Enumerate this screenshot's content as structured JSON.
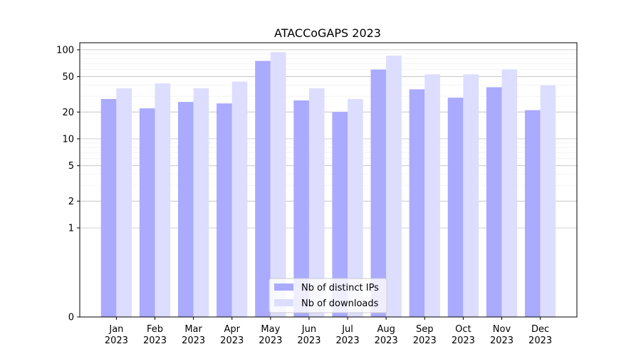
{
  "chart_data": {
    "type": "bar",
    "title": "ATACCoGAPS 2023",
    "xlabel": "",
    "ylabel": "",
    "yscale": "symlog",
    "ylim": [
      0,
      120
    ],
    "yticks": [
      0,
      1,
      2,
      5,
      10,
      20,
      50,
      100
    ],
    "ytick_labels": [
      "0",
      "1",
      "2",
      "5",
      "10",
      "20",
      "50",
      "100"
    ],
    "grid": "horizontal",
    "legend_position": "bottom-center",
    "categories": [
      [
        "Jan",
        "2023"
      ],
      [
        "Feb",
        "2023"
      ],
      [
        "Mar",
        "2023"
      ],
      [
        "Apr",
        "2023"
      ],
      [
        "May",
        "2023"
      ],
      [
        "Jun",
        "2023"
      ],
      [
        "Jul",
        "2023"
      ],
      [
        "Aug",
        "2023"
      ],
      [
        "Sep",
        "2023"
      ],
      [
        "Oct",
        "2023"
      ],
      [
        "Nov",
        "2023"
      ],
      [
        "Dec",
        "2023"
      ]
    ],
    "series": [
      {
        "name": "Nb of distinct IPs",
        "color": "#aaaaff",
        "values": [
          28,
          22,
          26,
          25,
          75,
          27,
          20,
          60,
          36,
          29,
          38,
          21
        ]
      },
      {
        "name": "Nb of downloads",
        "color": "#ddddff",
        "values": [
          37,
          42,
          37,
          44,
          94,
          37,
          28,
          86,
          53,
          53,
          60,
          40
        ]
      }
    ]
  }
}
